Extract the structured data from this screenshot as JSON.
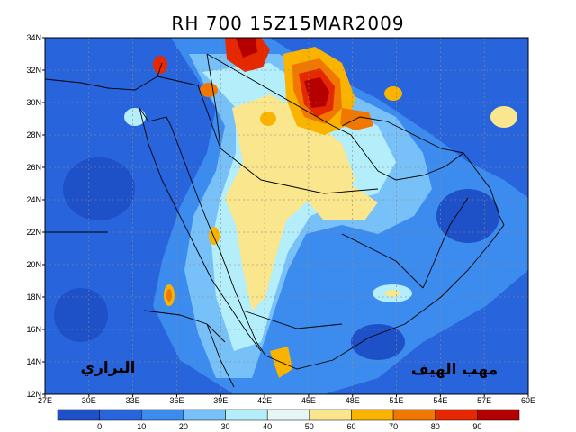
{
  "title": "RH 700 15Z15MAR2009",
  "lat_labels": [
    "34N",
    "32N",
    "30N",
    "28N",
    "26N",
    "24N",
    "22N",
    "20N",
    "18N",
    "16N",
    "14N",
    "12N"
  ],
  "lon_labels": [
    "27E",
    "30E",
    "33E",
    "36E",
    "39E",
    "42E",
    "45E",
    "48E",
    "51E",
    "54E",
    "57E",
    "60E"
  ],
  "colorbar": {
    "ticks": [
      "0",
      "10",
      "20",
      "30",
      "40",
      "50",
      "60",
      "70",
      "80",
      "90"
    ],
    "colors": [
      "#1e50c8",
      "#2864dc",
      "#3c8cf0",
      "#78c0f8",
      "#b4eefa",
      "#e6f5f5",
      "#fae68c",
      "#fab400",
      "#f07800",
      "#e62800",
      "#b40000"
    ]
  },
  "annotations": {
    "left": "البراري",
    "right": "مهب الهيف"
  }
}
